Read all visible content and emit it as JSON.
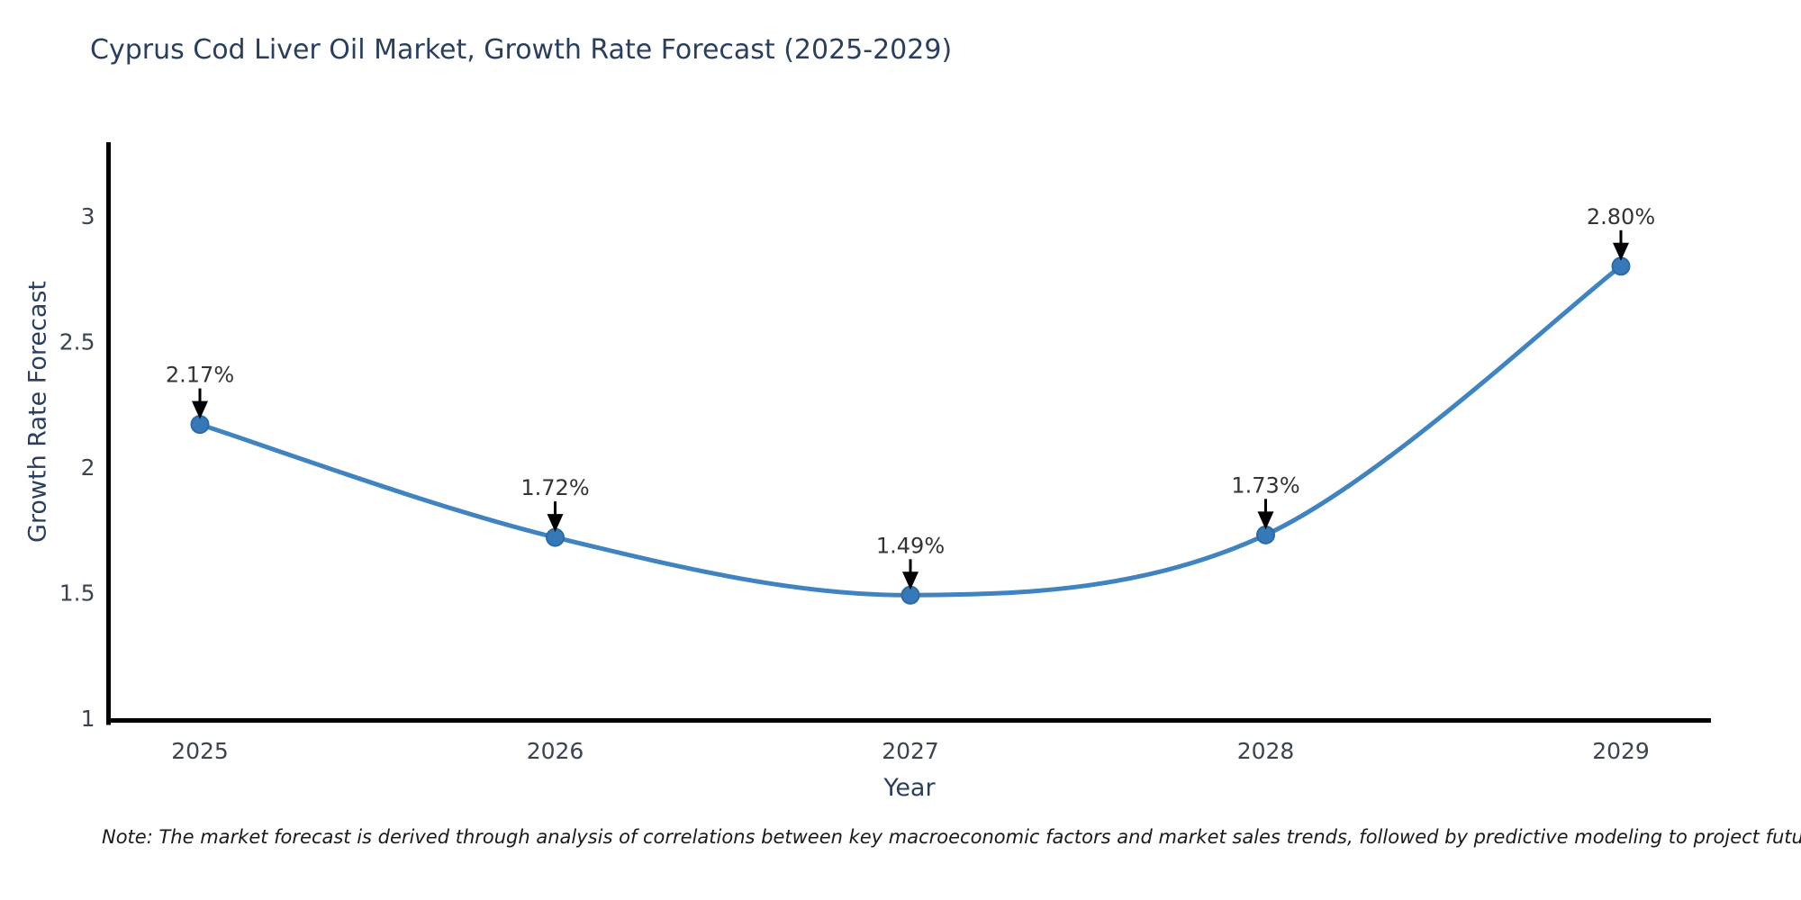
{
  "title": "Cyprus Cod Liver Oil Market, Growth Rate Forecast (2025-2029)",
  "note": "Note: The market forecast is derived through analysis of correlations between key macroeconomic factors and market sales trends, followed by predictive modeling to project future sales",
  "chart_data": {
    "type": "line",
    "title": "Cyprus Cod Liver Oil Market, Growth Rate Forecast (2025-2029)",
    "xlabel": "Year",
    "ylabel": "Growth Rate Forecast",
    "categories": [
      "2025",
      "2026",
      "2027",
      "2028",
      "2029"
    ],
    "values": [
      2.17,
      1.72,
      1.49,
      1.73,
      2.8
    ],
    "point_labels": [
      "2.17%",
      "1.72%",
      "1.49%",
      "1.73%",
      "2.80%"
    ],
    "yticks": [
      1,
      1.5,
      2,
      2.5,
      3
    ],
    "ytick_labels": [
      "1",
      "1.5",
      "2",
      "2.5",
      "3"
    ],
    "ylim": [
      1,
      3.3
    ],
    "grid": false,
    "legend_position": "none",
    "line_color": "#3f83c0",
    "marker_color": "#3579b8",
    "marker_edge_color": "#2c6aa6",
    "axis_color": "#000000",
    "annotation_arrow_color": "#000000"
  }
}
